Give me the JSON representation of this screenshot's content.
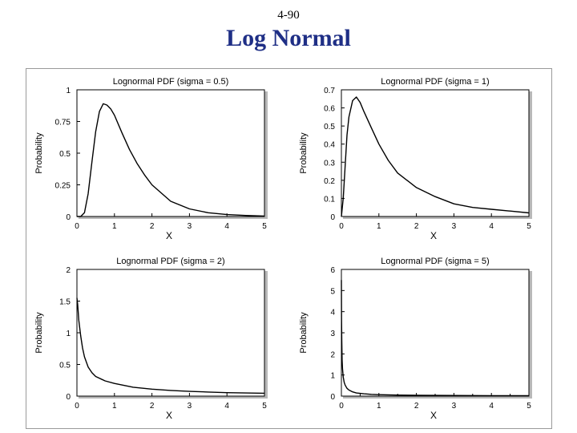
{
  "slide": {
    "number": "4-90",
    "title": "Log Normal"
  },
  "colors": {
    "title": "#1f2f86",
    "curve": "#000000",
    "axis": "#000000",
    "shadow": "#b8b8b8"
  },
  "chart_data": [
    {
      "type": "line",
      "title": "Lognormal PDF (sigma = 0.5)",
      "sigma": 0.5,
      "xlabel": "X",
      "ylabel": "Probability",
      "xlim": [
        0,
        5
      ],
      "ylim": [
        0,
        1
      ],
      "x_ticks": [
        "0",
        "1",
        "2",
        "3",
        "4",
        "5"
      ],
      "y_ticks": [
        "0",
        "0.25",
        "0.5",
        "0.75",
        "1"
      ],
      "x": [
        0.0,
        0.1,
        0.2,
        0.3,
        0.4,
        0.5,
        0.6,
        0.7,
        0.8,
        0.9,
        1.0,
        1.2,
        1.4,
        1.6,
        1.8,
        2.0,
        2.5,
        3.0,
        3.5,
        4.0,
        4.5,
        5.0
      ],
      "y": [
        0.0,
        0.0,
        0.03,
        0.18,
        0.43,
        0.67,
        0.83,
        0.89,
        0.88,
        0.85,
        0.8,
        0.66,
        0.53,
        0.42,
        0.33,
        0.25,
        0.12,
        0.06,
        0.03,
        0.015,
        0.008,
        0.004
      ]
    },
    {
      "type": "line",
      "title": "Lognormal PDF (sigma = 1)",
      "sigma": 1,
      "xlabel": "X",
      "ylabel": "Probability",
      "xlim": [
        0,
        5
      ],
      "ylim": [
        0,
        0.7
      ],
      "x_ticks": [
        "0",
        "1",
        "2",
        "3",
        "4",
        "5"
      ],
      "y_ticks": [
        "0",
        "0.1",
        "0.2",
        "0.3",
        "0.4",
        "0.5",
        "0.6",
        "0.7"
      ],
      "x": [
        0.0,
        0.05,
        0.1,
        0.15,
        0.2,
        0.3,
        0.4,
        0.5,
        0.6,
        0.8,
        1.0,
        1.25,
        1.5,
        2.0,
        2.5,
        3.0,
        3.5,
        4.0,
        4.5,
        5.0
      ],
      "y": [
        0.0,
        0.1,
        0.28,
        0.45,
        0.55,
        0.64,
        0.66,
        0.63,
        0.58,
        0.49,
        0.4,
        0.31,
        0.24,
        0.16,
        0.11,
        0.07,
        0.05,
        0.04,
        0.03,
        0.02
      ]
    },
    {
      "type": "line",
      "title": "Lognormal PDF (sigma = 2)",
      "sigma": 2,
      "xlabel": "X",
      "ylabel": "Probability",
      "xlim": [
        0,
        5
      ],
      "ylim": [
        0,
        2
      ],
      "x_ticks": [
        "0",
        "1",
        "2",
        "3",
        "4",
        "5"
      ],
      "y_ticks": [
        "0",
        "0.5",
        "1",
        "1.5",
        "2"
      ],
      "x": [
        0.0,
        0.02,
        0.05,
        0.1,
        0.15,
        0.2,
        0.3,
        0.4,
        0.5,
        0.75,
        1.0,
        1.5,
        2.0,
        2.5,
        3.0,
        3.5,
        4.0,
        4.5,
        5.0
      ],
      "y": [
        1.55,
        1.45,
        1.2,
        0.95,
        0.76,
        0.62,
        0.46,
        0.37,
        0.31,
        0.24,
        0.2,
        0.14,
        0.11,
        0.09,
        0.075,
        0.065,
        0.055,
        0.05,
        0.045
      ]
    },
    {
      "type": "line",
      "title": "Lognormal PDF (sigma = 5)",
      "sigma": 5,
      "xlabel": "X",
      "ylabel": "Probability",
      "xlim": [
        0,
        5
      ],
      "ylim": [
        0,
        6
      ],
      "x_ticks": [
        "0",
        "0.5",
        "1",
        "1.5",
        "2",
        "2.5",
        "3",
        "3.5",
        "4",
        "4.5",
        "5"
      ],
      "y_ticks": [
        "0",
        "1",
        "2",
        "3",
        "4",
        "5",
        "6"
      ],
      "x": [
        0.0,
        0.005,
        0.01,
        0.02,
        0.03,
        0.05,
        0.075,
        0.1,
        0.15,
        0.2,
        0.3,
        0.4,
        0.6,
        0.8,
        1.0,
        1.5,
        2.0,
        3.0,
        4.0,
        5.0
      ],
      "y": [
        5.5,
        3.6,
        2.6,
        1.7,
        1.3,
        0.9,
        0.65,
        0.52,
        0.37,
        0.29,
        0.2,
        0.15,
        0.11,
        0.085,
        0.07,
        0.05,
        0.04,
        0.03,
        0.022,
        0.018
      ]
    }
  ]
}
